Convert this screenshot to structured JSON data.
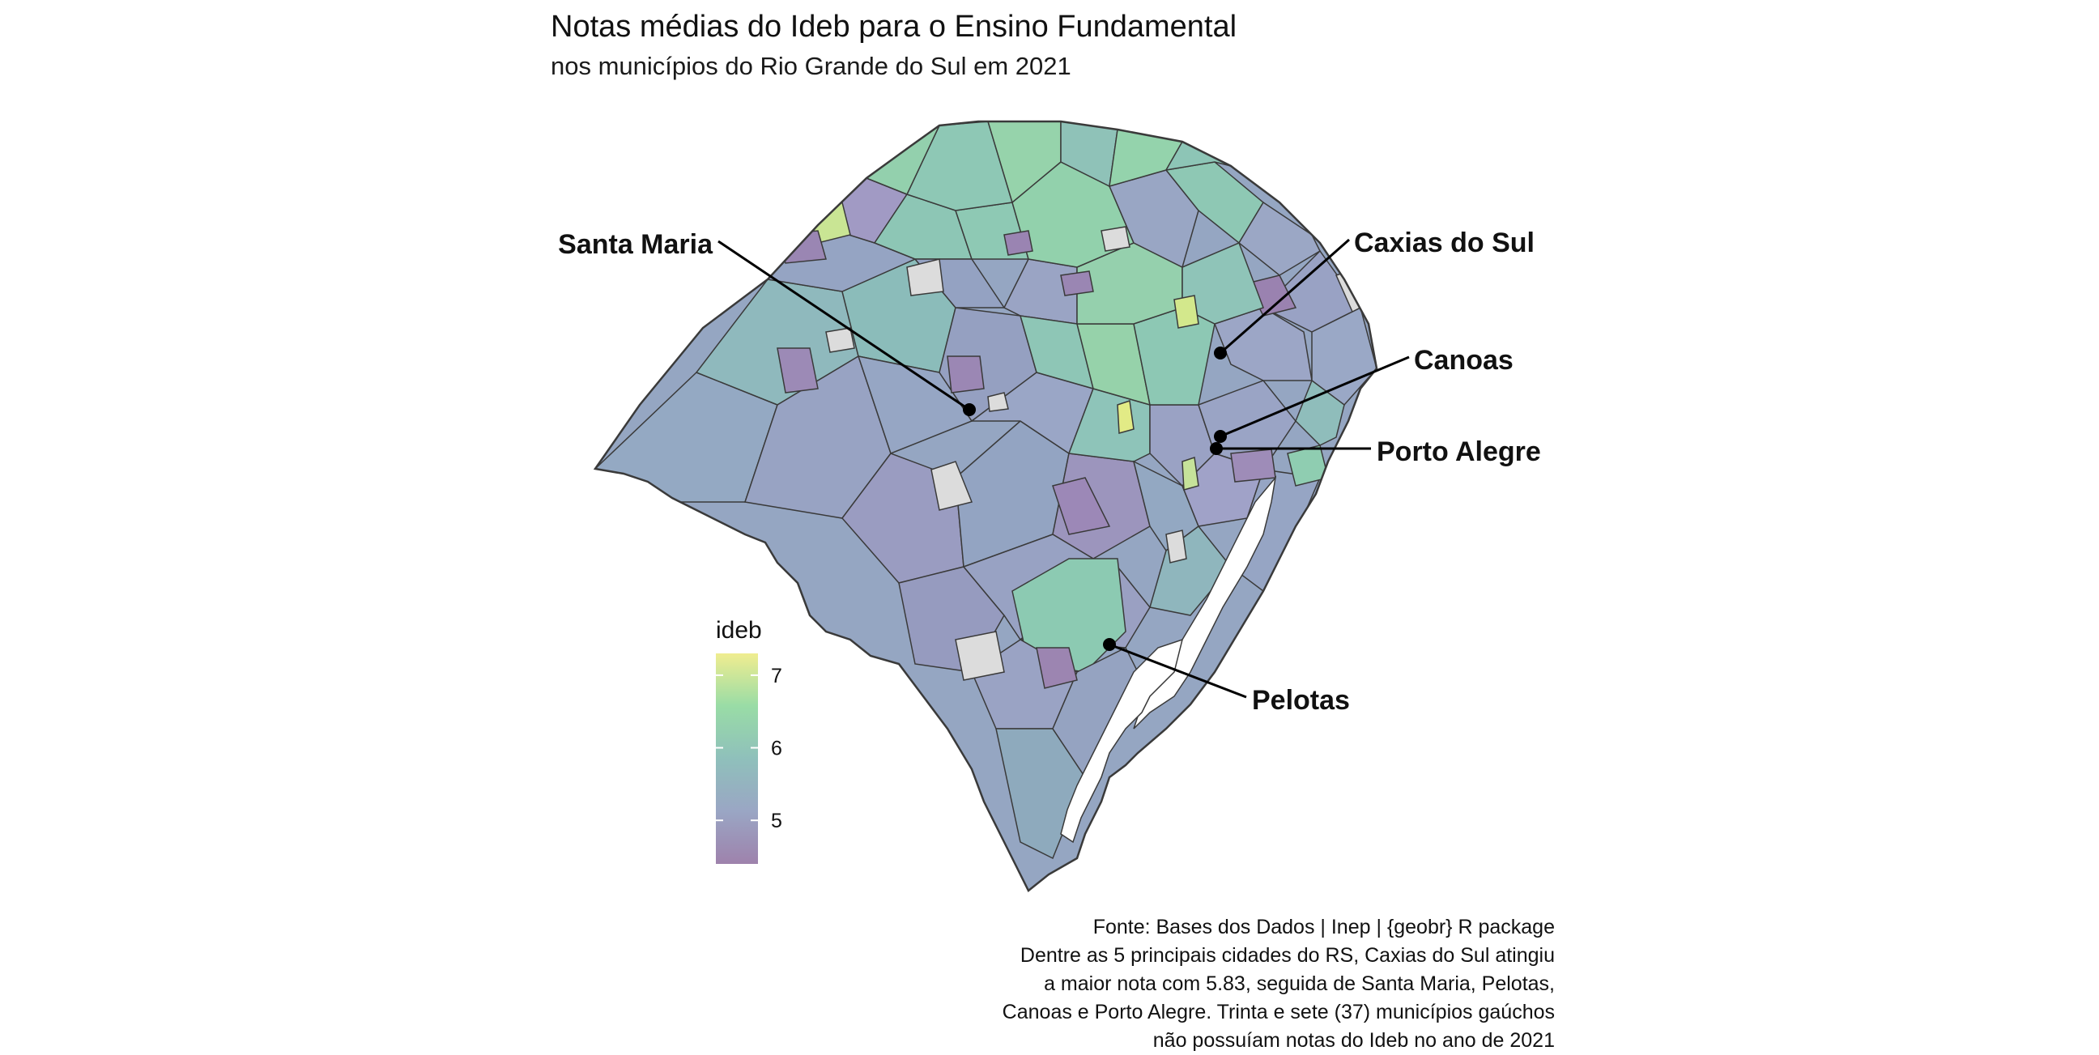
{
  "title": "Notas médias do Ideb para o Ensino Fundamental",
  "subtitle": "nos municípios do Rio Grande do Sul em 2021",
  "legend": {
    "title": "ideb",
    "ticks": [
      "7",
      "6",
      "5"
    ],
    "tick_values": [
      7,
      6,
      5
    ],
    "range": [
      4.4,
      7.3
    ],
    "colors": [
      "#9e82ac",
      "#9aa6c4",
      "#8fc0bb",
      "#99dca6",
      "#f0ed90"
    ]
  },
  "cities": [
    {
      "name": "Santa Maria"
    },
    {
      "name": "Caxias do Sul"
    },
    {
      "name": "Canoas"
    },
    {
      "name": "Porto Alegre"
    },
    {
      "name": "Pelotas"
    }
  ],
  "caption": [
    "Fonte: Bases dos Dados | Inep | {geobr} R package",
    "Dentre as 5 principais cidades do RS, Caxias do Sul atingiu",
    "a maior nota com 5.83, seguida de Santa Maria, Pelotas,",
    "Canoas e Porto Alegre. Trinta e sete (37) municípios gaúchos",
    "não possuíam notas do Ideb no ano de 2021"
  ],
  "colors": {
    "missing": "#dcdcdc",
    "border": "#3a3a3a"
  }
}
